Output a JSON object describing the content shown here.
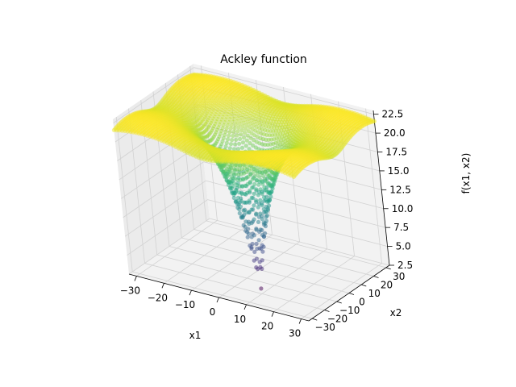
{
  "chart_data": {
    "type": "scatter",
    "projection": "3d",
    "title": "Ackley function",
    "xlabel": "x1",
    "ylabel": "x2",
    "zlabel": "f(x1, x2)",
    "xlim": [
      -32.768,
      32.768
    ],
    "ylim": [
      -32.768,
      32.768
    ],
    "zlim": [
      2.5,
      23.0
    ],
    "x_ticks": [
      -30,
      -20,
      -10,
      0,
      10,
      20,
      30
    ],
    "y_ticks": [
      -30,
      -20,
      -10,
      0,
      10,
      20,
      30
    ],
    "z_ticks": [
      2.5,
      5.0,
      7.5,
      10.0,
      12.5,
      15.0,
      17.5,
      20.0,
      22.5
    ],
    "x_tick_labels": [
      "−30",
      "−20",
      "−10",
      "0",
      "10",
      "20",
      "30"
    ],
    "y_tick_labels": [
      "−30",
      "−20",
      "−10",
      "0",
      "10",
      "20",
      "30"
    ],
    "z_tick_labels": [
      "2.5",
      "5.0",
      "7.5",
      "10.0",
      "12.5",
      "15.0",
      "17.5",
      "20.0",
      "22.5"
    ],
    "grid": true,
    "colormap": "viridis",
    "function": "ackley",
    "ackley_params": {
      "a": 20,
      "b": 0.2,
      "c": 6.2832
    },
    "grid_range": [
      -32.768,
      32.768
    ],
    "grid_points_per_axis": 65,
    "series": [
      {
        "color_by": "z",
        "opacity": 0.5
      }
    ],
    "colors": {
      "pane": "#f2f2f2",
      "pane_side": "#ebebeb",
      "grid": "#d2d2d2",
      "axis": "#000000"
    }
  }
}
